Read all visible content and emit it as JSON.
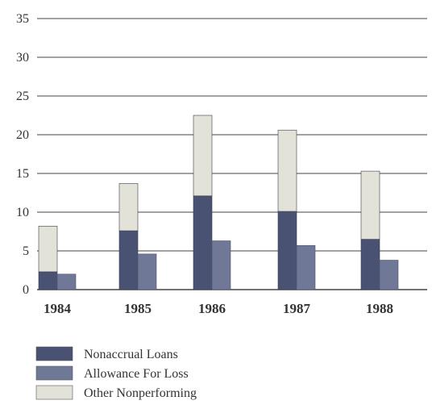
{
  "chart_data": {
    "type": "bar",
    "categories": [
      "1984",
      "1985",
      "1986",
      "1987",
      "1988"
    ],
    "ylim": [
      0,
      35
    ],
    "y_ticks": [
      0,
      5,
      10,
      15,
      20,
      25,
      30,
      35
    ],
    "grid": true,
    "legend_placement": "bottom-left",
    "series": [
      {
        "name": "Nonaccrual Loans",
        "stack": "A",
        "color": "#4a5273",
        "values": [
          2.3,
          7.6,
          12.1,
          10.1,
          6.5
        ]
      },
      {
        "name": "Other Nonperforming",
        "stack": "A",
        "color": "#e3e2d9",
        "values": [
          5.9,
          6.1,
          10.4,
          10.5,
          8.8
        ]
      },
      {
        "name": "Allowance For Loss",
        "stack": "B",
        "color": "#6f7896",
        "values": [
          2.0,
          4.6,
          6.3,
          5.7,
          3.8
        ]
      }
    ],
    "legend": [
      {
        "label": "Nonaccrual Loans",
        "color": "#4a5273"
      },
      {
        "label": "Allowance For Loss",
        "color": "#6f7896"
      },
      {
        "label": "Other Nonperforming",
        "color": "#e3e2d9"
      }
    ]
  }
}
